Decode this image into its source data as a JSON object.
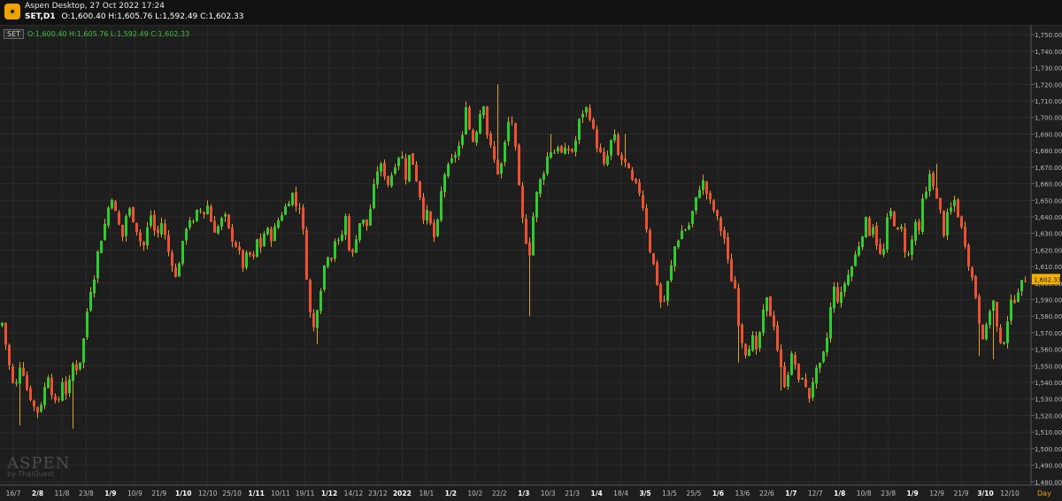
{
  "window": {
    "title": "Aspen Desktop, 27 Oct 2022 17:24",
    "symbol": "SET,D1",
    "ohlc": "O:1,600.40  H:1,605.76  L:1,592.49  C:1,602.33"
  },
  "legend": {
    "tag": "SET",
    "values": "O:1,600.40  H:1,605.76  L:1,592.49  C:1,602.33"
  },
  "watermark": {
    "brand": "ASPEN",
    "by": "by ThaiQuest"
  },
  "timeframe": "Day",
  "colors": {
    "background": "#1e1e1e",
    "up": "#2fcc2f",
    "down": "#ee5033",
    "wick": "#e0a030",
    "price_tag": "#f5b000",
    "grid": "#2b2b2b"
  },
  "chart_data": {
    "type": "candlestick",
    "instrument": "SET",
    "timeframe": "D1",
    "y_axis": {
      "min": 1478,
      "max": 1756,
      "ticks": [
        1750,
        1740,
        1730,
        1720,
        1710,
        1700,
        1690,
        1680,
        1670,
        1660,
        1650,
        1640,
        1630,
        1620,
        1610,
        1600,
        1590,
        1580,
        1570,
        1560,
        1550,
        1540,
        1530,
        1520,
        1510,
        1500,
        1490,
        1480
      ],
      "tick_labels": [
        "1,750.00",
        "1,740.00",
        "1,730.00",
        "1,720.00",
        "1,710.00",
        "1,700.00",
        "1,690.00",
        "1,680.00",
        "1,670.00",
        "1,660.00",
        "1,650.00",
        "1,640.00",
        "1,630.00",
        "1,620.00",
        "1,610.00",
        "1,600.00",
        "1,590.00",
        "1,580.00",
        "1,570.00",
        "1,560.00",
        "1,550.00",
        "1,540.00",
        "1,530.00",
        "1,520.00",
        "1,510.00",
        "1,500.00",
        "1,490.00",
        "1,480.00"
      ]
    },
    "x_axis_labels": [
      {
        "text": "16/7",
        "bold": false
      },
      {
        "text": "2/8",
        "bold": true
      },
      {
        "text": "11/8",
        "bold": false
      },
      {
        "text": "23/8",
        "bold": false
      },
      {
        "text": "1/9",
        "bold": true
      },
      {
        "text": "10/9",
        "bold": false
      },
      {
        "text": "21/9",
        "bold": false
      },
      {
        "text": "1/10",
        "bold": true
      },
      {
        "text": "12/10",
        "bold": false
      },
      {
        "text": "25/10",
        "bold": false
      },
      {
        "text": "1/11",
        "bold": true
      },
      {
        "text": "10/11",
        "bold": false
      },
      {
        "text": "19/11",
        "bold": false
      },
      {
        "text": "1/12",
        "bold": true
      },
      {
        "text": "14/12",
        "bold": false
      },
      {
        "text": "23/12",
        "bold": false
      },
      {
        "text": "2022",
        "bold": true
      },
      {
        "text": "18/1",
        "bold": false
      },
      {
        "text": "1/2",
        "bold": true
      },
      {
        "text": "10/2",
        "bold": false
      },
      {
        "text": "22/2",
        "bold": false
      },
      {
        "text": "1/3",
        "bold": true
      },
      {
        "text": "10/3",
        "bold": false
      },
      {
        "text": "21/3",
        "bold": false
      },
      {
        "text": "1/4",
        "bold": true
      },
      {
        "text": "18/4",
        "bold": false
      },
      {
        "text": "3/5",
        "bold": true
      },
      {
        "text": "13/5",
        "bold": false
      },
      {
        "text": "25/5",
        "bold": false
      },
      {
        "text": "1/6",
        "bold": true
      },
      {
        "text": "13/6",
        "bold": false
      },
      {
        "text": "22/6",
        "bold": false
      },
      {
        "text": "1/7",
        "bold": true
      },
      {
        "text": "12/7",
        "bold": false
      },
      {
        "text": "1/8",
        "bold": true
      },
      {
        "text": "10/8",
        "bold": false
      },
      {
        "text": "23/8",
        "bold": false
      },
      {
        "text": "1/9",
        "bold": true
      },
      {
        "text": "12/9",
        "bold": false
      },
      {
        "text": "21/9",
        "bold": false
      },
      {
        "text": "3/10",
        "bold": true
      },
      {
        "text": "12/10",
        "bold": false
      }
    ],
    "last_price_label": "1,602.33",
    "last_price": 1602.33,
    "path": [
      [
        0,
        1572
      ],
      [
        4,
        1576
      ],
      [
        8,
        1563
      ],
      [
        12,
        1550
      ],
      [
        18,
        1534
      ],
      [
        25,
        1553
      ],
      [
        32,
        1536
      ],
      [
        38,
        1528
      ],
      [
        43,
        1521
      ],
      [
        50,
        1530
      ],
      [
        55,
        1547
      ],
      [
        60,
        1534
      ],
      [
        66,
        1524
      ],
      [
        72,
        1541
      ],
      [
        77,
        1532
      ],
      [
        84,
        1551
      ],
      [
        90,
        1547
      ],
      [
        95,
        1562
      ],
      [
        100,
        1583
      ],
      [
        104,
        1596
      ],
      [
        108,
        1604
      ],
      [
        113,
        1622
      ],
      [
        118,
        1630
      ],
      [
        123,
        1644
      ],
      [
        128,
        1652
      ],
      [
        133,
        1640
      ],
      [
        140,
        1628
      ],
      [
        146,
        1647
      ],
      [
        151,
        1640
      ],
      [
        158,
        1629
      ],
      [
        163,
        1620
      ],
      [
        168,
        1633
      ],
      [
        172,
        1641
      ],
      [
        178,
        1627
      ],
      [
        185,
        1638
      ],
      [
        190,
        1622
      ],
      [
        196,
        1612
      ],
      [
        201,
        1601
      ],
      [
        205,
        1617
      ],
      [
        210,
        1628
      ],
      [
        214,
        1640
      ],
      [
        220,
        1636
      ],
      [
        226,
        1646
      ],
      [
        231,
        1641
      ],
      [
        236,
        1647
      ],
      [
        241,
        1635
      ],
      [
        245,
        1631
      ],
      [
        250,
        1636
      ],
      [
        255,
        1642
      ],
      [
        262,
        1628
      ],
      [
        267,
        1624
      ],
      [
        272,
        1618
      ],
      [
        276,
        1610
      ],
      [
        282,
        1620
      ],
      [
        287,
        1612
      ],
      [
        292,
        1626
      ],
      [
        296,
        1622
      ],
      [
        302,
        1634
      ],
      [
        308,
        1627
      ],
      [
        314,
        1636
      ],
      [
        320,
        1642
      ],
      [
        326,
        1648
      ],
      [
        332,
        1654
      ],
      [
        338,
        1643
      ],
      [
        342,
        1650
      ],
      [
        346,
        1612
      ],
      [
        350,
        1596
      ],
      [
        354,
        1568
      ],
      [
        358,
        1578
      ],
      [
        362,
        1593
      ],
      [
        366,
        1601
      ],
      [
        370,
        1620
      ],
      [
        375,
        1613
      ],
      [
        380,
        1626
      ],
      [
        386,
        1624
      ],
      [
        392,
        1640
      ],
      [
        398,
        1612
      ],
      [
        404,
        1628
      ],
      [
        410,
        1641
      ],
      [
        415,
        1632
      ],
      [
        420,
        1645
      ],
      [
        425,
        1661
      ],
      [
        430,
        1673
      ],
      [
        435,
        1667
      ],
      [
        440,
        1660
      ],
      [
        445,
        1667
      ],
      [
        450,
        1675
      ],
      [
        455,
        1679
      ],
      [
        460,
        1664
      ],
      [
        465,
        1680
      ],
      [
        470,
        1667
      ],
      [
        475,
        1656
      ],
      [
        480,
        1640
      ],
      [
        485,
        1643
      ],
      [
        490,
        1630
      ],
      [
        494,
        1625
      ],
      [
        498,
        1648
      ],
      [
        503,
        1665
      ],
      [
        508,
        1670
      ],
      [
        513,
        1675
      ],
      [
        518,
        1680
      ],
      [
        524,
        1688
      ],
      [
        528,
        1708
      ],
      [
        532,
        1693
      ],
      [
        536,
        1686
      ],
      [
        542,
        1696
      ],
      [
        547,
        1713
      ],
      [
        552,
        1690
      ],
      [
        557,
        1680
      ],
      [
        561,
        1672
      ],
      [
        565,
        1665
      ],
      [
        569,
        1674
      ],
      [
        574,
        1691
      ],
      [
        578,
        1703
      ],
      [
        582,
        1693
      ],
      [
        586,
        1668
      ],
      [
        591,
        1641
      ],
      [
        595,
        1630
      ],
      [
        599,
        1612
      ],
      [
        603,
        1637
      ],
      [
        608,
        1654
      ],
      [
        612,
        1662
      ],
      [
        617,
        1669
      ],
      [
        622,
        1681
      ],
      [
        627,
        1678
      ],
      [
        632,
        1683
      ],
      [
        637,
        1677
      ],
      [
        642,
        1682
      ],
      [
        647,
        1678
      ],
      [
        652,
        1686
      ],
      [
        656,
        1698
      ],
      [
        660,
        1703
      ],
      [
        665,
        1706
      ],
      [
        670,
        1697
      ],
      [
        675,
        1684
      ],
      [
        680,
        1678
      ],
      [
        685,
        1669
      ],
      [
        690,
        1682
      ],
      [
        695,
        1691
      ],
      [
        700,
        1677
      ],
      [
        706,
        1673
      ],
      [
        710,
        1671
      ],
      [
        715,
        1662
      ],
      [
        720,
        1659
      ],
      [
        725,
        1654
      ],
      [
        730,
        1641
      ],
      [
        735,
        1622
      ],
      [
        740,
        1611
      ],
      [
        745,
        1597
      ],
      [
        750,
        1583
      ],
      [
        755,
        1598
      ],
      [
        760,
        1610
      ],
      [
        764,
        1622
      ],
      [
        769,
        1628
      ],
      [
        774,
        1634
      ],
      [
        778,
        1631
      ],
      [
        782,
        1639
      ],
      [
        786,
        1647
      ],
      [
        791,
        1656
      ],
      [
        795,
        1663
      ],
      [
        800,
        1654
      ],
      [
        804,
        1649
      ],
      [
        808,
        1644
      ],
      [
        812,
        1639
      ],
      [
        816,
        1632
      ],
      [
        820,
        1627
      ],
      [
        824,
        1613
      ],
      [
        828,
        1602
      ],
      [
        832,
        1597
      ],
      [
        836,
        1576
      ],
      [
        840,
        1565
      ],
      [
        844,
        1558
      ],
      [
        848,
        1562
      ],
      [
        852,
        1567
      ],
      [
        856,
        1558
      ],
      [
        860,
        1570
      ],
      [
        864,
        1582
      ],
      [
        868,
        1590
      ],
      [
        872,
        1581
      ],
      [
        876,
        1575
      ],
      [
        880,
        1560
      ],
      [
        884,
        1548
      ],
      [
        888,
        1539
      ],
      [
        892,
        1546
      ],
      [
        896,
        1556
      ],
      [
        900,
        1551
      ],
      [
        904,
        1540
      ],
      [
        908,
        1544
      ],
      [
        912,
        1536
      ],
      [
        916,
        1531
      ],
      [
        920,
        1541
      ],
      [
        924,
        1547
      ],
      [
        928,
        1550
      ],
      [
        932,
        1557
      ],
      [
        936,
        1567
      ],
      [
        940,
        1585
      ],
      [
        944,
        1597
      ],
      [
        948,
        1590
      ],
      [
        952,
        1593
      ],
      [
        956,
        1600
      ],
      [
        960,
        1605
      ],
      [
        964,
        1610
      ],
      [
        968,
        1617
      ],
      [
        972,
        1623
      ],
      [
        976,
        1630
      ],
      [
        980,
        1638
      ],
      [
        984,
        1630
      ],
      [
        988,
        1635
      ],
      [
        992,
        1624
      ],
      [
        996,
        1617
      ],
      [
        1000,
        1620
      ],
      [
        1004,
        1638
      ],
      [
        1008,
        1643
      ],
      [
        1012,
        1636
      ],
      [
        1016,
        1631
      ],
      [
        1020,
        1633
      ],
      [
        1024,
        1620
      ],
      [
        1028,
        1617
      ],
      [
        1032,
        1626
      ],
      [
        1036,
        1637
      ],
      [
        1040,
        1630
      ],
      [
        1044,
        1650
      ],
      [
        1048,
        1654
      ],
      [
        1052,
        1666
      ],
      [
        1056,
        1660
      ],
      [
        1060,
        1650
      ],
      [
        1064,
        1643
      ],
      [
        1068,
        1630
      ],
      [
        1072,
        1641
      ],
      [
        1076,
        1645
      ],
      [
        1080,
        1650
      ],
      [
        1084,
        1641
      ],
      [
        1088,
        1633
      ],
      [
        1092,
        1624
      ],
      [
        1096,
        1612
      ],
      [
        1100,
        1603
      ],
      [
        1104,
        1592
      ],
      [
        1108,
        1577
      ],
      [
        1112,
        1568
      ],
      [
        1116,
        1573
      ],
      [
        1120,
        1584
      ],
      [
        1124,
        1589
      ],
      [
        1128,
        1573
      ],
      [
        1132,
        1562
      ],
      [
        1136,
        1566
      ],
      [
        1140,
        1578
      ],
      [
        1144,
        1588
      ],
      [
        1148,
        1590
      ],
      [
        1152,
        1596
      ],
      [
        1156,
        1600
      ],
      [
        1160,
        1602
      ]
    ],
    "spikes": [
      {
        "x": 344,
        "value": 1625
      },
      {
        "x": 356,
        "value": 1563
      },
      {
        "x": 560,
        "value": 1720
      },
      {
        "x": 596,
        "value": 1580
      },
      {
        "x": 620,
        "value": 1690
      },
      {
        "x": 663,
        "value": 1708
      },
      {
        "x": 705,
        "value": 1690
      },
      {
        "x": 832,
        "value": 1552
      },
      {
        "x": 880,
        "value": 1535
      },
      {
        "x": 1056,
        "value": 1672
      },
      {
        "x": 1104,
        "value": 1556
      },
      {
        "x": 1120,
        "value": 1554
      },
      {
        "x": 18,
        "value": 1514
      },
      {
        "x": 78,
        "value": 1512
      }
    ]
  }
}
